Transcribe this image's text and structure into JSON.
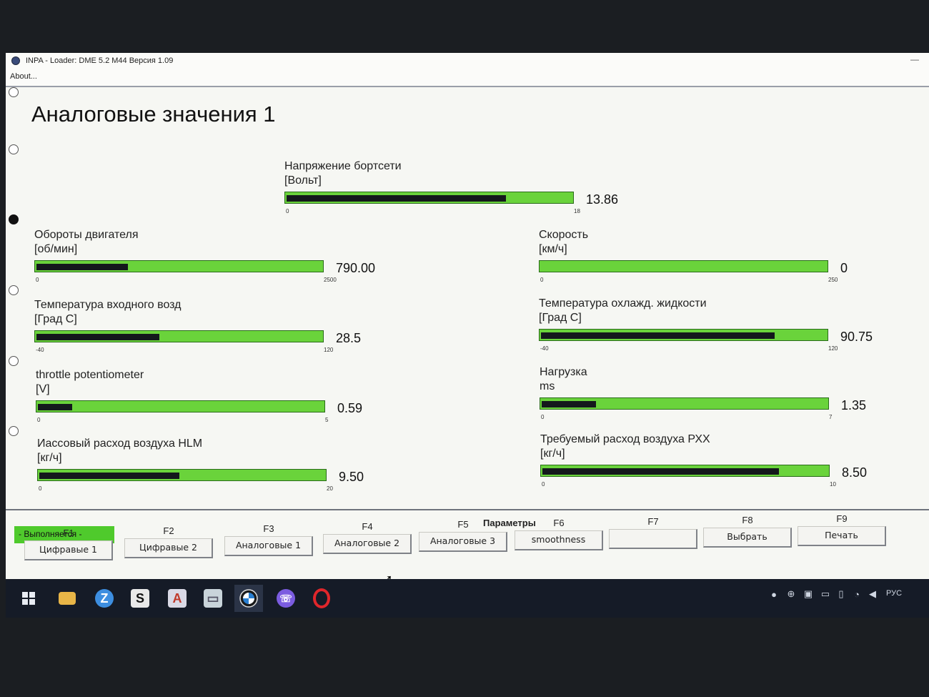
{
  "window": {
    "title": "INPA - Loader:  DME 5.2 M44 Версия 1.09",
    "minimize": "—"
  },
  "menu": {
    "about": "About..."
  },
  "page_title": "Аналоговые значения 1",
  "gauges": [
    {
      "label": "Напряжение бортсети",
      "unit": "[Вольт]",
      "min": "0",
      "max": "18",
      "value": "13.86",
      "fill_fraction": 0.77
    },
    {
      "label": "Обороты двигателя",
      "unit": "[об/мин]",
      "min": "0",
      "max": "2500",
      "value": "790.00",
      "fill_fraction": 0.32
    },
    {
      "label": "Скорость",
      "unit": "[км/ч]",
      "min": "0",
      "max": "250",
      "value": "0",
      "fill_fraction": 0
    },
    {
      "label": "Температура входного возд",
      "unit": "[Град С]",
      "min": "-40",
      "max": "120",
      "value": "28.5",
      "fill_fraction": 0.43
    },
    {
      "label": "Температура охлажд. жидкости",
      "unit": "[Град С]",
      "min": "-40",
      "max": "120",
      "value": "90.75",
      "fill_fraction": 0.82
    },
    {
      "label": "throttle potentiometer",
      "unit": "[V]",
      "min": "0",
      "max": "5",
      "value": "0.59",
      "fill_fraction": 0.12
    },
    {
      "label": "Нагрузка",
      "unit": "ms",
      "min": "0",
      "max": "7",
      "value": "1.35",
      "fill_fraction": 0.19
    },
    {
      "label": "Иассовый расход воздуха HLM",
      "unit": "[кг/ч]",
      "min": "0",
      "max": "20",
      "value": "9.50",
      "fill_fraction": 0.49
    },
    {
      "label": "Требуемый расход воздуха РХХ",
      "unit": "[кг/ч]",
      "min": "0",
      "max": "10",
      "value": "8.50",
      "fill_fraction": 0.83
    }
  ],
  "status": {
    "text": "- Выполняется -"
  },
  "params_title": "Параметры",
  "fkeys": [
    {
      "key": "F1",
      "label": "Цифравые 1"
    },
    {
      "key": "F2",
      "label": "Цифравые 2"
    },
    {
      "key": "F3",
      "label": "Аналоговые 1"
    },
    {
      "key": "F4",
      "label": "Аналоговые 2"
    },
    {
      "key": "F5",
      "label": "Аналоговые 3"
    },
    {
      "key": "F6",
      "label": "smoothness"
    },
    {
      "key": "F7",
      "label": ""
    },
    {
      "key": "F8",
      "label": "Выбрать"
    },
    {
      "key": "F9",
      "label": "Печать"
    }
  ],
  "taskbar": {
    "apps": [
      "start-icon",
      "file-explorer-icon",
      "z-app-icon",
      "s-app-icon",
      "a-app-icon",
      "documents-icon",
      "bmw-icon",
      "viber-icon",
      "opera-icon"
    ],
    "language": "РУС"
  }
}
